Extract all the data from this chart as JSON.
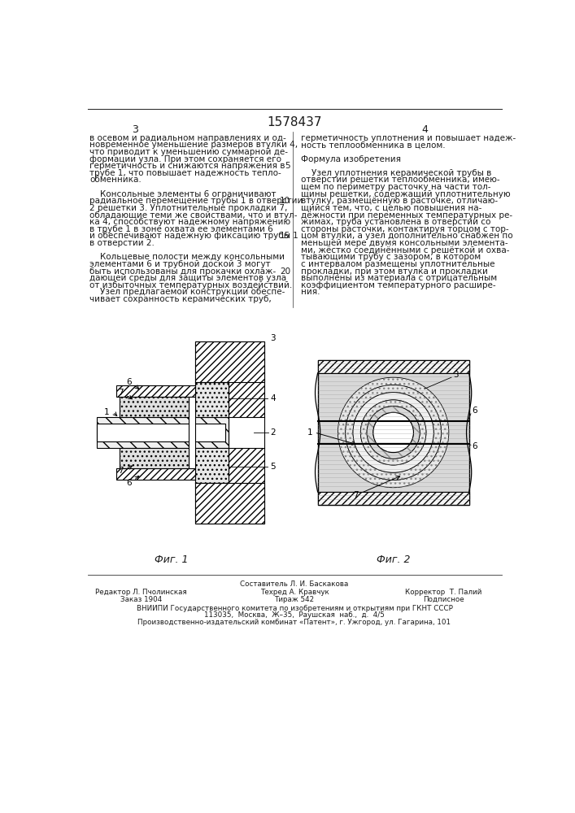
{
  "title_number": "1578437",
  "page_left": "3",
  "page_right": "4",
  "fig1_label": "Фиг. 1",
  "fig2_label": "Фиг. 2",
  "text_col1_lines": [
    "в осевом и радиальном направлениях и од-",
    "новременное уменьшение размеров втулки 4,",
    "что приводит к уменьшению суммарной де-",
    "формации узла. При этом сохраняется его",
    "герметичность и снижаются напряжения в",
    "трубе 1, что повышает надежность тепло-",
    "обменника.",
    "",
    "    Консольные элементы 6 ограничивают",
    "радиальное перемещение трубы 1 в отверстии",
    "2 решетки 3. Уплотнительные прокладки 7,",
    "обладающие теми же свойствами, что и втул-",
    "ка 4, способствуют надежному напряжению",
    "в трубе 1 в зоне охвата ее элементами 6",
    "и обеспечивают надежную фиксацию трубы 1",
    "в отверстии 2.",
    "",
    "    Кольцевые полости между консольными",
    "элементами 6 и трубной доской 3 могут",
    "быть использованы для прокачки охлаж-",
    "дающей среды для защиты элементов узла",
    "от избыточных температурных воздействий.",
    "    Узел предлагаемой конструкции обеспе-",
    "чивает сохранность керамических труб,"
  ],
  "text_col2_lines": [
    "герметичность уплотнения и повышает надеж-",
    "ность теплообменника в целом.",
    "",
    "Формула изобретения",
    "",
    "    Узел уплотнения керамической трубы в",
    "отверстии решетки теплообменника, имею-",
    "щем по периметру расточку на части тол-",
    "щины решетки, содержащий уплотнительную",
    "втулку, размещённую в расточке, отличаю-",
    "щийся тем, что, с целью повышения на-",
    "дёжности при переменных температурных ре-",
    "жимах, труба установлена в отверстии со",
    "стороны расточки, контактируя торцом с тор-",
    "цом втулки, а узел дополнительно снабжен по",
    "меньшей мере двумя консольными элемента-",
    "ми, жёстко соединёнными с решёткой и охва-",
    "тывающими трубу с зазором; в котором",
    "с интервалом размещены уплотнительные",
    "прокладки, при этом втулка и прокладки",
    "выполнены из материала с отрицательным",
    "коэффициентом температурного расшире-",
    "ния."
  ],
  "footer_col1": [
    "Редактор Л. Пчолинская",
    "Заказ 1904"
  ],
  "footer_col2": [
    "Составитель Л. И. Баскакова",
    "Техред А. Кравчук",
    "Тираж 542"
  ],
  "footer_col3": [
    "Корректор  Т. Палий",
    "Подписное"
  ],
  "footer_line1": "ВНИИПИ Государственного комитета по изобретениям и открытиям при ГКНТ СССР",
  "footer_line2": "113035,  Москва,  Ж–35,  Раушская  наб.,  д.  4/5",
  "footer_line3": "Производственно-издательский комбинат «Патент», г. Ужгород, ул. Гагарина, 101",
  "bg_color": "#ffffff",
  "text_color": "#1a1a1a"
}
